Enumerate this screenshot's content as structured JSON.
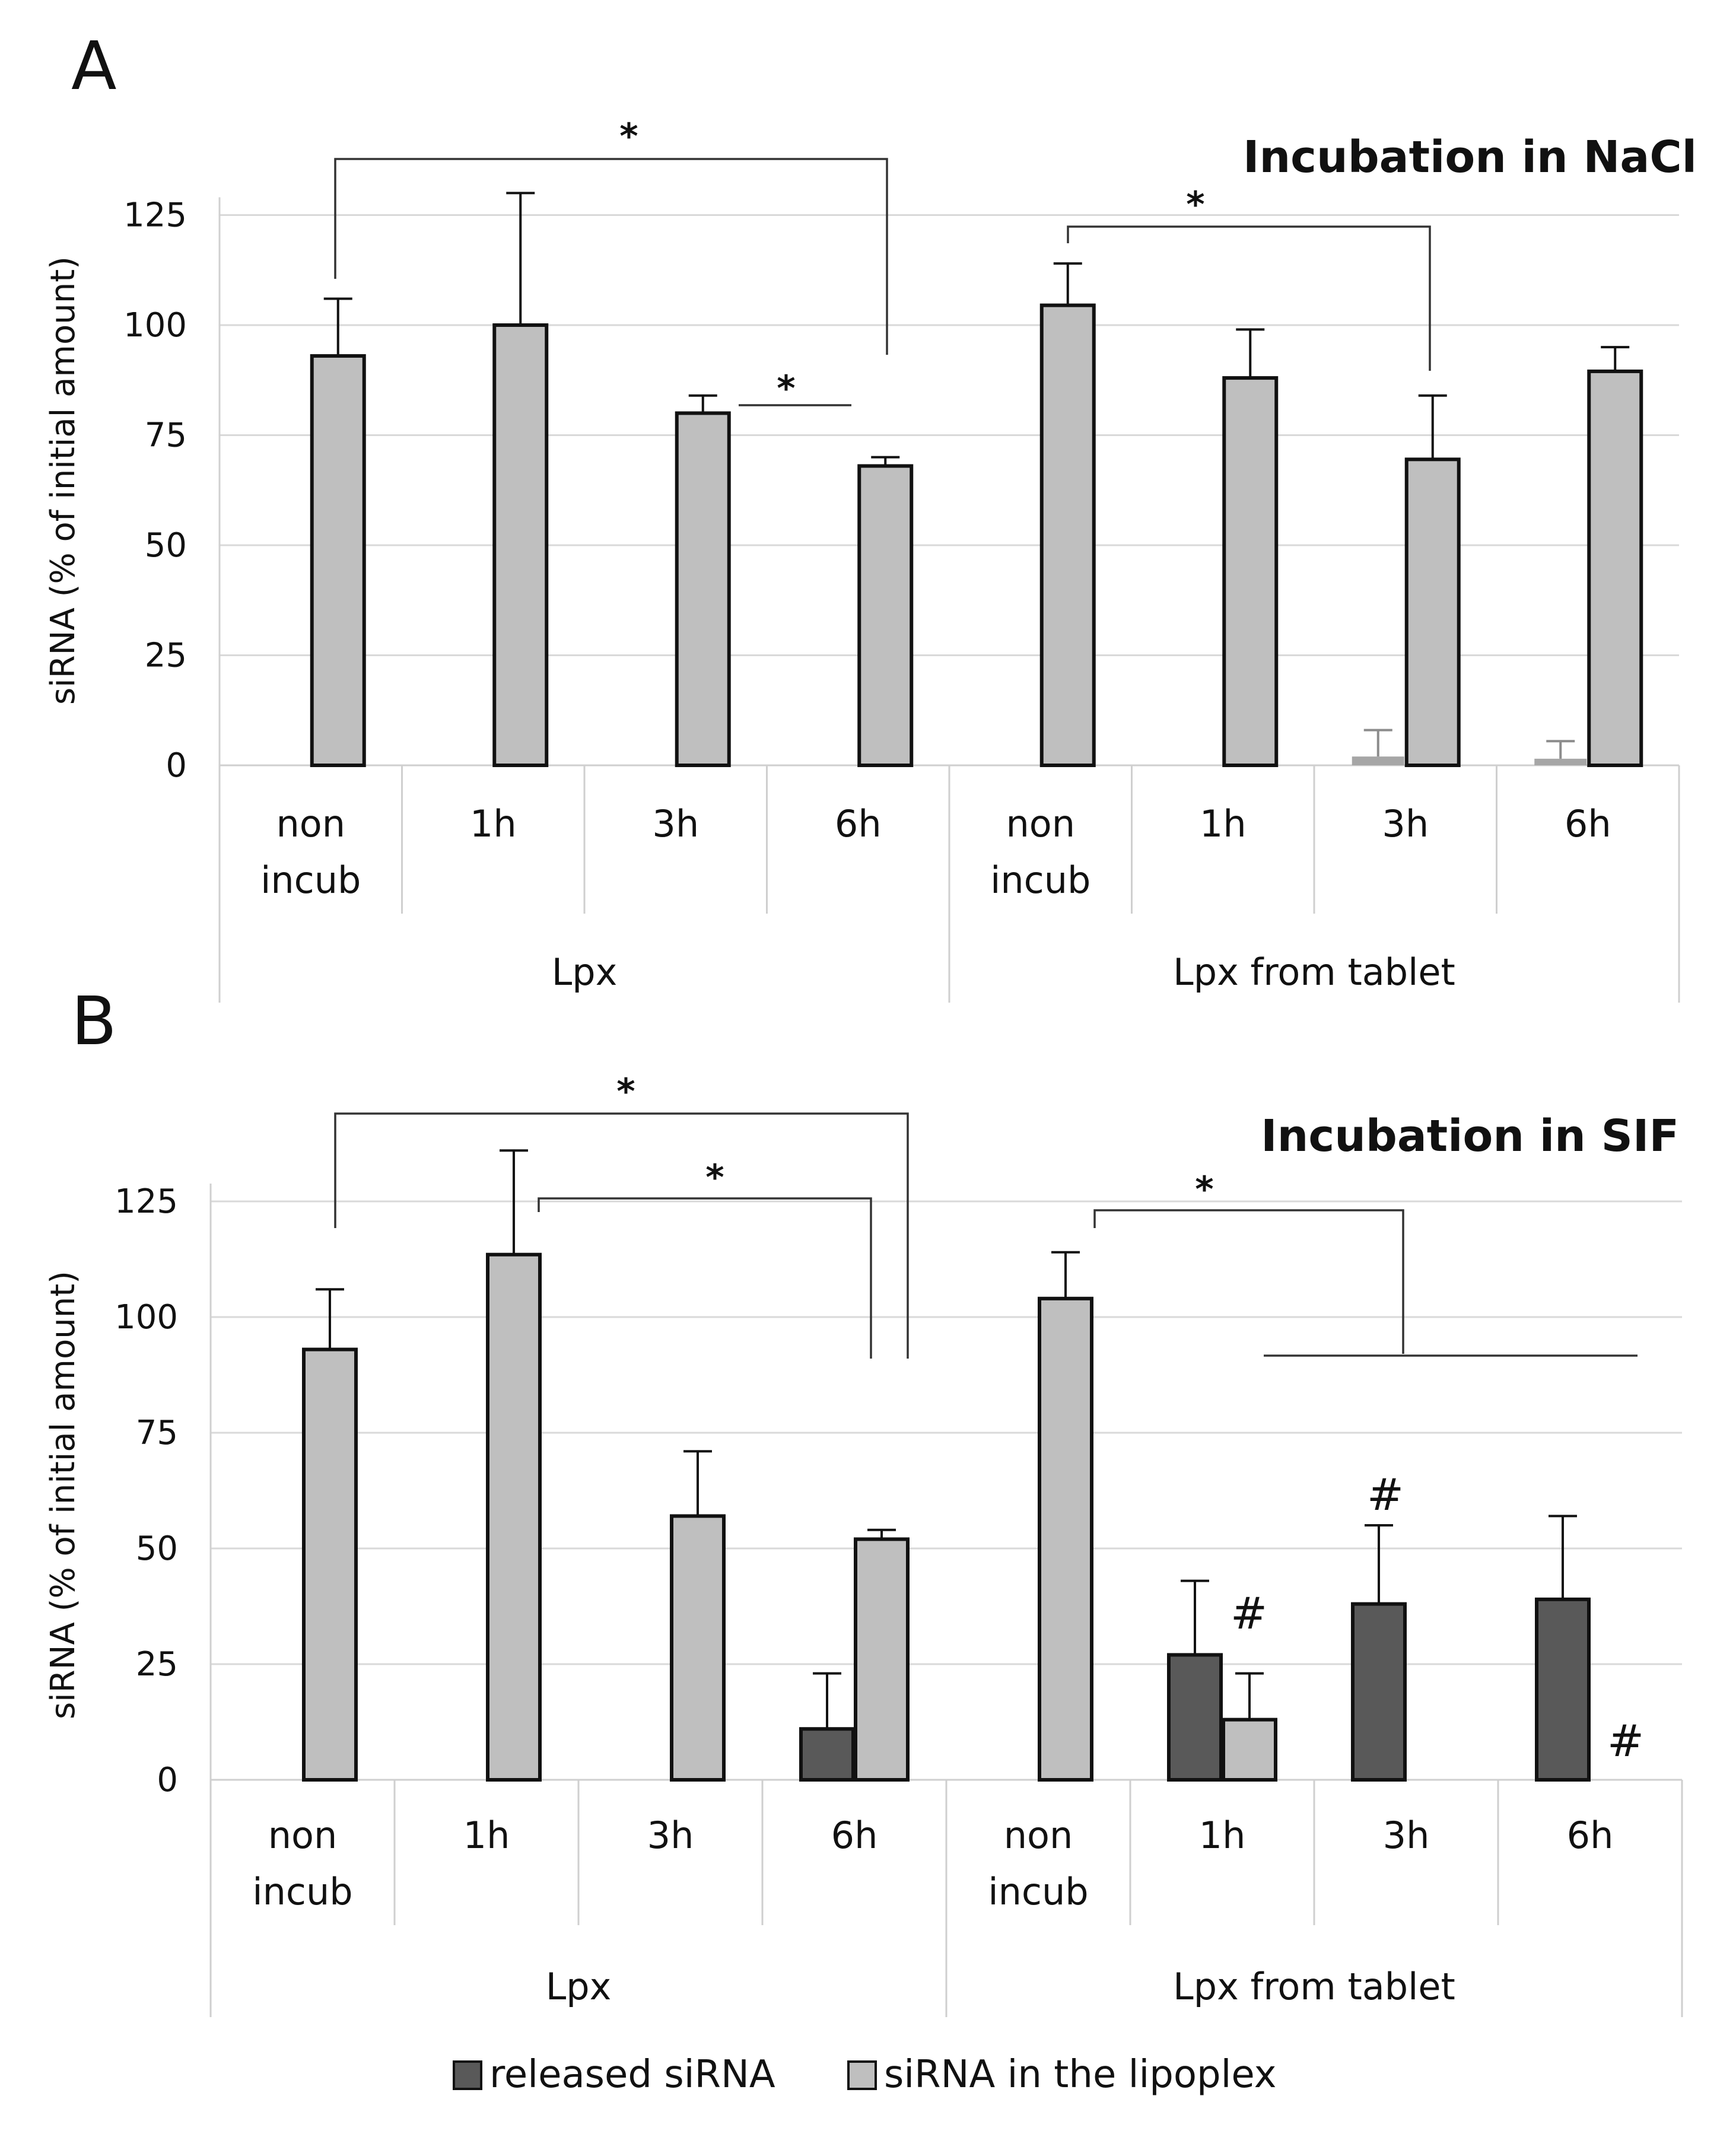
{
  "chart_data": [
    {
      "panel_label": "A",
      "type": "bar",
      "title": "Incubation in NaCl",
      "ylabel": "siRNA (% of initial amount)",
      "ylim": [
        0,
        125
      ],
      "yticks": [
        "0",
        "25",
        "50",
        "75",
        "100",
        "125"
      ],
      "groups": [
        "Lpx",
        "Lpx from tablet"
      ],
      "categories": [
        [
          "non",
          "incub"
        ],
        [
          "1h"
        ],
        [
          "3h"
        ],
        [
          "6h"
        ],
        [
          "non",
          "incub"
        ],
        [
          "1h"
        ],
        [
          "3h"
        ],
        [
          "6h"
        ]
      ],
      "series": [
        {
          "name": "released siRNA",
          "color": "#a6a6a6",
          "values": [
            0,
            0,
            0,
            0,
            0,
            0,
            2,
            1.5
          ],
          "errors": [
            0,
            0,
            0,
            0,
            0,
            0,
            6,
            4
          ]
        },
        {
          "name": "siRNA in the lipoplex",
          "color": "#bfbfbf",
          "values": [
            93,
            100,
            80,
            68,
            104.5,
            88,
            69.5,
            89.5
          ],
          "errors": [
            13,
            30,
            4,
            2,
            9.5,
            11,
            14.5,
            5.5
          ]
        }
      ],
      "annotations": [
        {
          "text": "*",
          "between": [
            "Lpx non incub",
            "Lpx 6h"
          ]
        },
        {
          "text": "*",
          "between": [
            "Lpx 3h",
            "Lpx 6h"
          ]
        },
        {
          "text": "*",
          "between": [
            "Lpx from tablet non incub",
            "Lpx from tablet 3h"
          ]
        }
      ]
    },
    {
      "panel_label": "B",
      "type": "bar",
      "title": "Incubation in SIF",
      "ylabel": "siRNA (% of initial amount)",
      "ylim": [
        0,
        125
      ],
      "yticks": [
        "0",
        "25",
        "50",
        "75",
        "100",
        "125"
      ],
      "groups": [
        "Lpx",
        "Lpx from tablet"
      ],
      "categories": [
        [
          "non",
          "incub"
        ],
        [
          "1h"
        ],
        [
          "3h"
        ],
        [
          "6h"
        ],
        [
          "non",
          "incub"
        ],
        [
          "1h"
        ],
        [
          "3h"
        ],
        [
          "6h"
        ]
      ],
      "series": [
        {
          "name": "released siRNA",
          "color": "#595959",
          "values": [
            0,
            0,
            0,
            11,
            0,
            27,
            38,
            39
          ],
          "errors": [
            0,
            0,
            0,
            12,
            0,
            16,
            17,
            18
          ]
        },
        {
          "name": "siRNA in the lipoplex",
          "color": "#bfbfbf",
          "values": [
            93,
            113.5,
            57,
            52,
            104,
            13,
            0,
            0
          ],
          "errors": [
            13,
            22.5,
            14,
            2,
            10,
            10,
            0,
            0
          ]
        }
      ],
      "annotations": [
        {
          "text": "*",
          "between": [
            "Lpx non incub",
            "Lpx 6h"
          ]
        },
        {
          "text": "*",
          "between": [
            "Lpx 1h",
            "Lpx 6h"
          ]
        },
        {
          "text": "*",
          "between": [
            "Lpx from tablet non incub",
            "Lpx from tablet 1h/3h/6h"
          ]
        },
        {
          "text": "#",
          "at": "Lpx from tablet 1h"
        },
        {
          "text": "#",
          "at": "Lpx from tablet 3h"
        },
        {
          "text": "#",
          "at": "Lpx from tablet 6h"
        }
      ]
    }
  ],
  "legend": [
    {
      "label": "released siRNA",
      "color": "#595959"
    },
    {
      "label": "siRNA in the lipoplex",
      "color": "#bfbfbf"
    }
  ]
}
